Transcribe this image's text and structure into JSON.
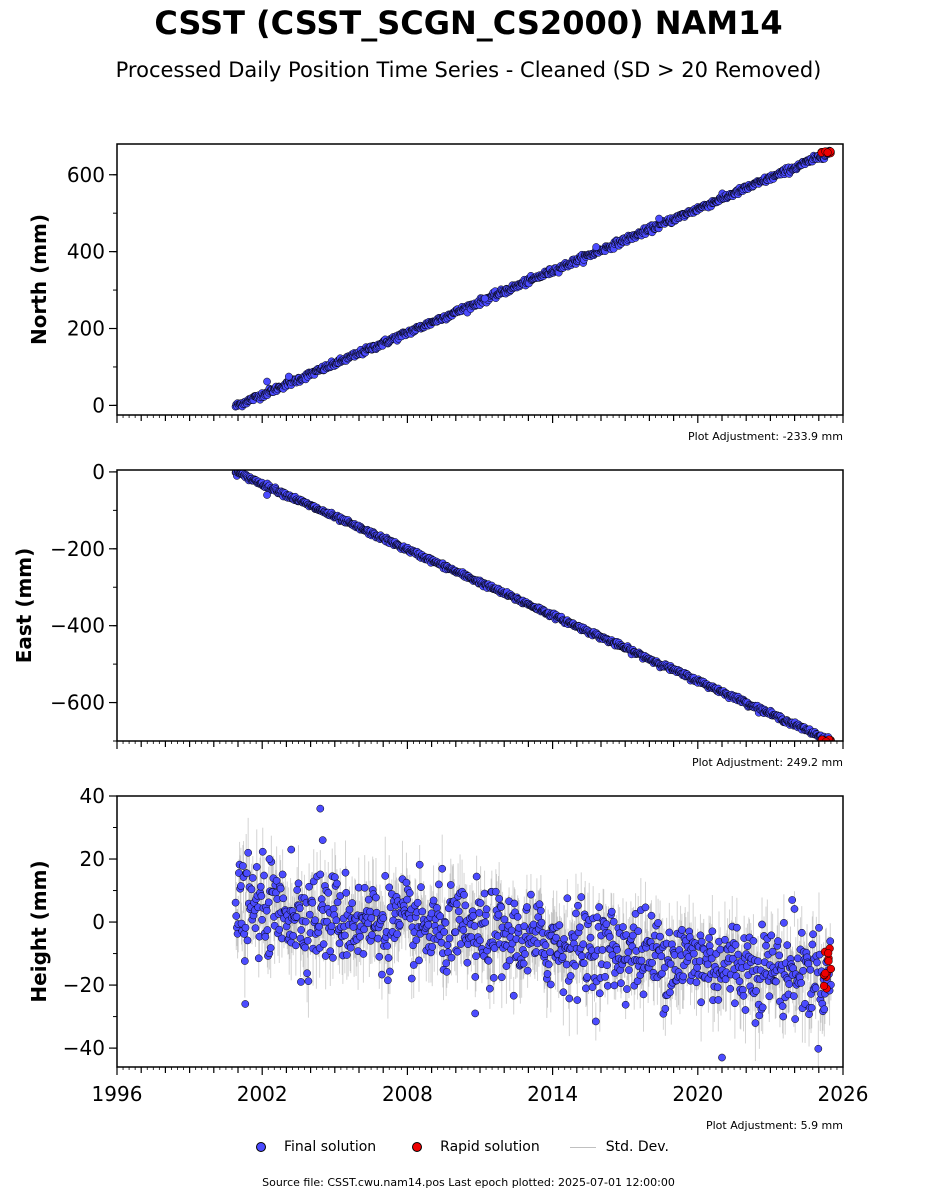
{
  "title": "CSST (CSST_SCGN_CS2000) NAM14",
  "subtitle": "Processed Daily Position Time Series - Cleaned (SD > 20 Removed)",
  "footer": "Source file: CSST.cwu.nam14.pos  Last epoch plotted: 2025-07-01 12:00:00",
  "colors": {
    "final": "#4b4bff",
    "rapid": "#ee0000",
    "std": "#c0c0c0",
    "edge": "#000000"
  },
  "legend": {
    "final": "Final solution",
    "rapid": "Rapid solution",
    "std": "Std. Dev."
  },
  "chart_data": [
    {
      "type": "scatter",
      "ylabel": "North (mm)",
      "xlim": [
        1996,
        2026
      ],
      "ylim": [
        -25,
        680
      ],
      "yticks": [
        0,
        200,
        400,
        600
      ],
      "ytick_labels": [
        "0",
        "200",
        "400",
        "600"
      ],
      "adjustment": "Plot Adjustment: -233.9 mm",
      "x_range": [
        2000.9,
        2025.5
      ],
      "trend": {
        "start": [
          2000.9,
          -2
        ],
        "end": [
          2025.5,
          659
        ]
      },
      "noise_mm": 4,
      "outliers": [
        [
          2002.2,
          62
        ],
        [
          2003.1,
          75
        ],
        [
          2015.8,
          412
        ],
        [
          2018.4,
          486
        ],
        [
          2011.2,
          278
        ]
      ],
      "rapid": {
        "x_range": [
          2025.1,
          2025.5
        ],
        "y_range": [
          656,
          661
        ]
      }
    },
    {
      "type": "scatter",
      "ylabel": "East (mm)",
      "xlim": [
        1996,
        2026
      ],
      "ylim": [
        -700,
        5
      ],
      "yticks": [
        0,
        -200,
        -400,
        -600
      ],
      "ytick_labels": [
        "0",
        "−200",
        "−400",
        "−600"
      ],
      "adjustment": "Plot Adjustment: 249.2 mm",
      "x_range": [
        2000.9,
        2025.5
      ],
      "trend": {
        "start": [
          2000.9,
          0
        ],
        "end": [
          2025.5,
          -700
        ]
      },
      "noise_mm": 3,
      "outliers": [
        [
          2002.2,
          -60
        ]
      ],
      "rapid": {
        "x_range": [
          2025.1,
          2025.5
        ],
        "y_range": [
          -702,
          -696
        ]
      }
    },
    {
      "type": "scatter",
      "ylabel": "Height (mm)",
      "xlim": [
        1996,
        2026
      ],
      "ylim": [
        -46,
        40
      ],
      "yticks": [
        40,
        20,
        0,
        -20,
        -40
      ],
      "ytick_labels": [
        "40",
        "20",
        "0",
        "−20",
        "−40"
      ],
      "xticks": [
        1996,
        2002,
        2008,
        2014,
        2020,
        2026
      ],
      "xtick_labels": [
        "1996",
        "2002",
        "2008",
        "2014",
        "2020",
        "2026"
      ],
      "adjustment": "Plot Adjustment: 5.9 mm",
      "x_range": [
        2000.9,
        2025.5
      ],
      "trend": {
        "start": [
          2000.9,
          5
        ],
        "end": [
          2025.5,
          -17
        ]
      },
      "noise_mm": 7,
      "outliers": [
        [
          2004.4,
          36
        ],
        [
          2004.5,
          26
        ],
        [
          2002.3,
          20
        ],
        [
          2003.2,
          23
        ],
        [
          2001.3,
          -26
        ],
        [
          2021.0,
          -43
        ],
        [
          2010.8,
          -29
        ],
        [
          2003.6,
          -19
        ],
        [
          2023.9,
          7
        ]
      ],
      "rapid": {
        "x_range": [
          2025.2,
          2025.5
        ],
        "y_range": [
          -23,
          -8
        ]
      }
    }
  ]
}
